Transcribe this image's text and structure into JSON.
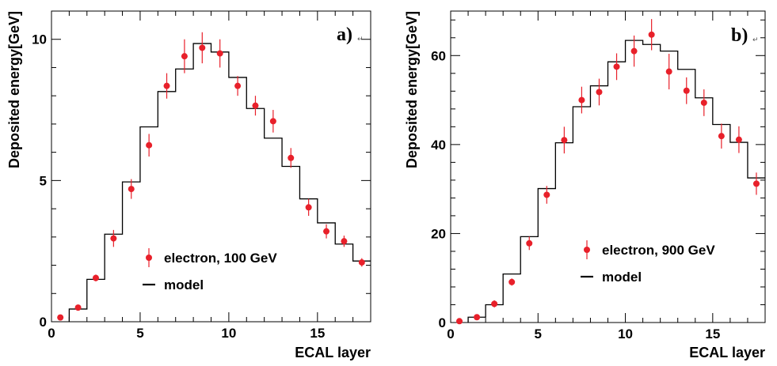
{
  "chart_data": [
    {
      "type": "scatter",
      "panel_label": "a)",
      "xlabel": "ECAL layer",
      "ylabel": "Deposited energy[GeV]",
      "xlim": [
        0,
        18
      ],
      "ylim": [
        0,
        11
      ],
      "xticks": [
        0,
        5,
        10,
        15
      ],
      "yticks": [
        0,
        5,
        10
      ],
      "legend_position": "center-bottom",
      "data_color": "#e8202a",
      "model_color": "#000000",
      "legend": {
        "data_label": "electron, 100 GeV",
        "model_label": "model"
      },
      "data": {
        "x": [
          0.5,
          1.5,
          2.5,
          3.5,
          4.5,
          5.5,
          6.5,
          7.5,
          8.5,
          9.5,
          10.5,
          11.5,
          12.5,
          13.5,
          14.5,
          15.5,
          16.5,
          17.5
        ],
        "y": [
          0.15,
          0.5,
          1.55,
          2.95,
          4.7,
          6.25,
          8.35,
          9.4,
          9.7,
          9.5,
          8.35,
          7.65,
          7.1,
          5.8,
          4.05,
          3.2,
          2.85,
          2.1
        ],
        "err": [
          0.05,
          0.05,
          0.12,
          0.3,
          0.35,
          0.4,
          0.45,
          0.6,
          0.55,
          0.5,
          0.35,
          0.35,
          0.4,
          0.35,
          0.3,
          0.25,
          0.2,
          0.15
        ]
      },
      "model": {
        "edges": [
          1,
          2,
          3,
          4,
          5,
          6,
          7,
          8,
          9,
          10,
          11,
          12,
          13,
          14,
          15,
          16,
          17,
          18
        ],
        "values": [
          0.45,
          1.5,
          3.1,
          4.95,
          6.9,
          8.15,
          8.95,
          9.85,
          9.55,
          8.65,
          7.55,
          6.5,
          5.5,
          4.35,
          3.5,
          2.75,
          2.15
        ]
      }
    },
    {
      "type": "scatter",
      "panel_label": "b)",
      "xlabel": "ECAL layer",
      "ylabel": "Deposited energy[GeV]",
      "xlim": [
        0,
        18
      ],
      "ylim": [
        0,
        70
      ],
      "xticks": [
        0,
        5,
        10,
        15
      ],
      "yticks": [
        0,
        20,
        40,
        60
      ],
      "legend_position": "center-bottom",
      "data_color": "#e8202a",
      "model_color": "#000000",
      "legend": {
        "data_label": "electron, 900 GeV",
        "model_label": "model"
      },
      "data": {
        "x": [
          0.5,
          1.5,
          2.5,
          3.5,
          4.5,
          5.5,
          6.5,
          7.5,
          8.5,
          9.5,
          10.5,
          11.5,
          12.5,
          13.5,
          14.5,
          15.5,
          16.5,
          17.5
        ],
        "y": [
          0.3,
          1.2,
          4.2,
          9.1,
          17.8,
          28.7,
          41.0,
          50.0,
          51.8,
          57.5,
          61.0,
          64.7,
          56.4,
          52.1,
          49.4,
          41.9,
          41.1,
          31.2
        ],
        "err": [
          0.2,
          0.3,
          0.8,
          0.8,
          1.5,
          2.0,
          3.0,
          3.0,
          3.0,
          3.0,
          3.5,
          3.5,
          4.0,
          3.0,
          3.0,
          2.8,
          3.0,
          2.5
        ]
      },
      "model": {
        "edges": [
          1,
          2,
          3,
          4,
          5,
          6,
          7,
          8,
          9,
          10,
          11,
          12,
          13,
          14,
          15,
          16,
          17,
          18
        ],
        "values": [
          1.2,
          4.0,
          10.9,
          19.3,
          30.1,
          40.4,
          48.5,
          53.2,
          58.6,
          63.4,
          62.5,
          61.0,
          56.9,
          50.5,
          44.5,
          40.5,
          32.5
        ]
      }
    }
  ]
}
